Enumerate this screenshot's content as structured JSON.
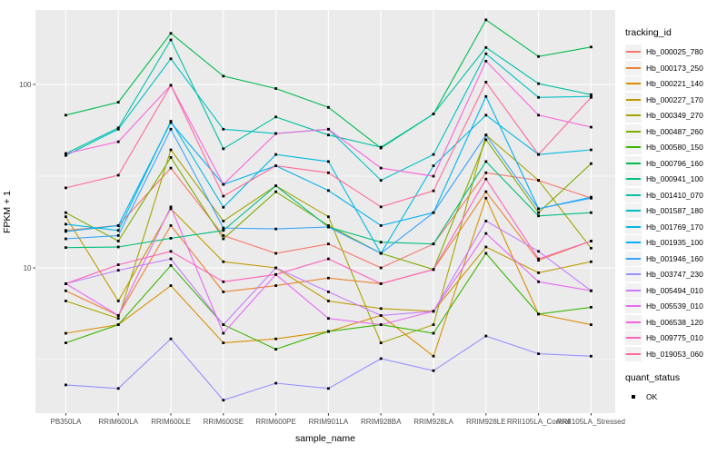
{
  "colors": {
    "panel_bg": "#EBEBEB",
    "grid": "#FFFFFF",
    "axis_text": "#4D4D4D",
    "tick_mark": "#333333",
    "point": "#000000",
    "legend_key_bg": "#F2F2F2"
  },
  "chart_data": {
    "type": "line",
    "title": "",
    "xlabel": "sample_name",
    "ylabel": "FPKM + 1",
    "y_scale": "log10",
    "y_ticks": [
      100,
      10
    ],
    "y_minor_ticks": [
      31.62,
      3.162
    ],
    "ylim": [
      1.6,
      255
    ],
    "grid": true,
    "legend_position": "right",
    "legend_title": "tracking_id",
    "legend2_title": "quant_status",
    "legend2_items": [
      {
        "label": "OK",
        "marker": "black-square"
      }
    ],
    "point_shape": "black-square",
    "categories": [
      "PB350LA",
      "RRIM600LA",
      "RRIM600LE",
      "RRIM600SE",
      "RRIM600PE",
      "RRIM901LA",
      "RRIM928BA",
      "RRIM928LA",
      "RRIM928LE",
      "RRII105LA_Control",
      "RRII105LA_Stressed"
    ],
    "series": [
      {
        "name": "Hb_000025_780",
        "color": "#F8766D",
        "quant_status": "OK",
        "values": [
          16,
          17,
          35,
          15,
          12,
          13.5,
          10,
          13.5,
          33,
          30,
          24
        ]
      },
      {
        "name": "Hb_000173_250",
        "color": "#EA8331",
        "quant_status": "OK",
        "values": [
          7.5,
          5.5,
          17,
          7.4,
          8,
          8.8,
          8.2,
          9.8,
          26,
          11,
          14
        ]
      },
      {
        "name": "Hb_000221_140",
        "color": "#D89000",
        "quant_status": "OK",
        "values": [
          4.4,
          4.9,
          8,
          3.9,
          4.1,
          4.5,
          5.5,
          3.3,
          24,
          5.6,
          4.9
        ]
      },
      {
        "name": "Hb_000227_170",
        "color": "#C09B00",
        "quant_status": "OK",
        "values": [
          19,
          6.6,
          21,
          10.8,
          10,
          6.6,
          6,
          5.8,
          13,
          9.4,
          10.8
        ]
      },
      {
        "name": "Hb_000349_270",
        "color": "#A3A500",
        "quant_status": "OK",
        "values": [
          6.6,
          5.3,
          44,
          18,
          28,
          19,
          3.9,
          4.9,
          53,
          30,
          12.8
        ]
      },
      {
        "name": "Hb_000487_260",
        "color": "#7CAE00",
        "quant_status": "OK",
        "values": [
          20,
          14,
          40,
          14.4,
          26,
          17,
          12,
          9.8,
          50,
          20,
          37
        ]
      },
      {
        "name": "Hb_000580_150",
        "color": "#39B600",
        "quant_status": "OK",
        "values": [
          3.9,
          4.9,
          10.3,
          4.9,
          3.6,
          4.5,
          4.9,
          4.4,
          12,
          5.6,
          6.1
        ]
      },
      {
        "name": "Hb_000796_160",
        "color": "#00BB4E",
        "quant_status": "OK",
        "values": [
          68,
          80,
          190,
          111,
          95,
          75,
          45,
          69,
          225,
          142,
          160
        ]
      },
      {
        "name": "Hb_000941_100",
        "color": "#00BF7D",
        "quant_status": "OK",
        "values": [
          12.9,
          13,
          14.5,
          16,
          28,
          16.7,
          13.8,
          13.5,
          38,
          19.2,
          20
        ]
      },
      {
        "name": "Hb_001410_070",
        "color": "#00C1A3",
        "quant_status": "OK",
        "values": [
          42,
          58,
          175,
          44.6,
          66.5,
          53,
          45.5,
          69,
          159,
          101,
          88
        ]
      },
      {
        "name": "Hb_001587_180",
        "color": "#00BFC4",
        "quant_status": "OK",
        "values": [
          41,
          57,
          138,
          57,
          54,
          57,
          30,
          41.5,
          147,
          85,
          86
        ]
      },
      {
        "name": "Hb_001769_170",
        "color": "#00BAE0",
        "quant_status": "OK",
        "values": [
          17.3,
          16,
          63,
          21.4,
          41.5,
          38,
          12,
          36,
          68,
          41.5,
          44
        ]
      },
      {
        "name": "Hb_001935_100",
        "color": "#00B0F6",
        "quant_status": "OK",
        "values": [
          15.8,
          17,
          62,
          28.5,
          36,
          26.4,
          17,
          20,
          86,
          21,
          24.3
        ]
      },
      {
        "name": "Hb_001946_160",
        "color": "#35A2FF",
        "quant_status": "OK",
        "values": [
          14.4,
          15,
          57,
          16.5,
          16.3,
          16.7,
          12,
          20,
          53,
          21,
          24
        ]
      },
      {
        "name": "Hb_003747_230",
        "color": "#9590FF",
        "quant_status": "OK",
        "values": [
          2.3,
          2.2,
          4.1,
          1.9,
          2.35,
          2.2,
          3.2,
          2.75,
          4.25,
          3.4,
          3.3
        ]
      },
      {
        "name": "Hb_005494_010",
        "color": "#C77CFF",
        "quant_status": "OK",
        "values": [
          8.2,
          9.7,
          11.2,
          4.9,
          10,
          7.4,
          5.5,
          5.8,
          18,
          12.3,
          7.5
        ]
      },
      {
        "name": "Hb_005539_010",
        "color": "#E76BF3",
        "quant_status": "OK",
        "values": [
          8.2,
          5.5,
          21.5,
          4.4,
          9.2,
          5.3,
          4.9,
          5.8,
          15.4,
          8.4,
          7.5
        ]
      },
      {
        "name": "Hb_006538_120",
        "color": "#FA62DB",
        "quant_status": "OK",
        "values": [
          42,
          48.7,
          99,
          28.5,
          54,
          57,
          35,
          31.6,
          134,
          68,
          58.5
        ]
      },
      {
        "name": "Hb_009775_010",
        "color": "#FF62BC",
        "quant_status": "OK",
        "values": [
          8.2,
          10.4,
          12.3,
          8.4,
          9.2,
          11.2,
          8.2,
          9.8,
          30.5,
          11.2,
          14
        ]
      },
      {
        "name": "Hb_019053_060",
        "color": "#FF6A98",
        "quant_status": "OK",
        "values": [
          27.3,
          32,
          99,
          24.6,
          36,
          33,
          21.5,
          26.3,
          103,
          41.5,
          85
        ]
      }
    ]
  }
}
